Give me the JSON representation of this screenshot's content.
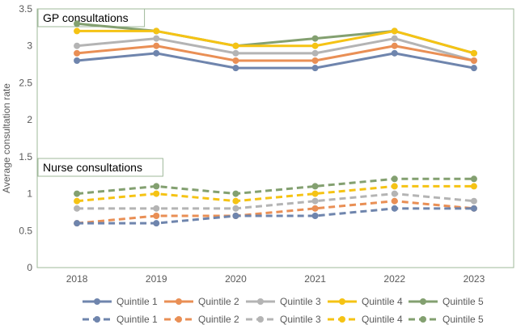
{
  "chart_data": {
    "type": "line",
    "ylabel": "Average consultation rate",
    "xlabel": "",
    "ylim": [
      0,
      3.5
    ],
    "yticks": [
      0,
      0.5,
      1,
      1.5,
      2,
      2.5,
      3,
      3.5
    ],
    "ytick_labels": [
      "0",
      "0.5",
      "1",
      "1.5",
      "2",
      "2.5",
      "3",
      "3.5"
    ],
    "categories": [
      "2018",
      "2019",
      "2020",
      "2021",
      "2022",
      "2023"
    ],
    "grid": false,
    "legend_position": "bottom",
    "annotations": [
      {
        "text": "GP consultations",
        "at": 3.5
      },
      {
        "text": "Nurse consultations",
        "at": 1.35
      }
    ],
    "series": [
      {
        "name": "Quintile 1",
        "group": "GP",
        "style": "solid",
        "color": "#6f85ad",
        "values": [
          2.8,
          2.9,
          2.7,
          2.7,
          2.9,
          2.7
        ]
      },
      {
        "name": "Quintile 2",
        "group": "GP",
        "style": "solid",
        "color": "#e98f55",
        "values": [
          2.9,
          3.0,
          2.8,
          2.8,
          3.0,
          2.8
        ]
      },
      {
        "name": "Quintile 3",
        "group": "GP",
        "style": "solid",
        "color": "#b4b4b4",
        "values": [
          3.0,
          3.1,
          2.9,
          2.9,
          3.1,
          2.8
        ]
      },
      {
        "name": "Quintile 4",
        "group": "GP",
        "style": "solid",
        "color": "#f5c314",
        "values": [
          3.2,
          3.2,
          3.0,
          3.0,
          3.2,
          2.9
        ]
      },
      {
        "name": "Quintile 5",
        "group": "GP",
        "style": "solid",
        "color": "#83a070",
        "values": [
          3.3,
          3.2,
          3.0,
          3.1,
          3.2,
          2.9
        ]
      },
      {
        "name": "Quintile 1",
        "group": "Nurse",
        "style": "dashed",
        "color": "#6f85ad",
        "values": [
          0.6,
          0.6,
          0.7,
          0.7,
          0.8,
          0.8
        ]
      },
      {
        "name": "Quintile 2",
        "group": "Nurse",
        "style": "dashed",
        "color": "#e98f55",
        "values": [
          0.6,
          0.7,
          0.7,
          0.8,
          0.9,
          0.8
        ]
      },
      {
        "name": "Quintile 3",
        "group": "Nurse",
        "style": "dashed",
        "color": "#b4b4b4",
        "values": [
          0.8,
          0.8,
          0.8,
          0.9,
          1.0,
          0.9
        ]
      },
      {
        "name": "Quintile 4",
        "group": "Nurse",
        "style": "dashed",
        "color": "#f5c314",
        "values": [
          0.9,
          1.0,
          0.9,
          1.0,
          1.1,
          1.1
        ]
      },
      {
        "name": "Quintile 5",
        "group": "Nurse",
        "style": "dashed",
        "color": "#83a070",
        "values": [
          1.0,
          1.1,
          1.0,
          1.1,
          1.2,
          1.2
        ]
      }
    ]
  }
}
